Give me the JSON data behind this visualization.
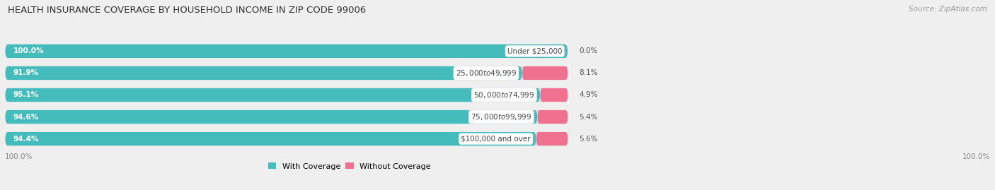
{
  "title": "HEALTH INSURANCE COVERAGE BY HOUSEHOLD INCOME IN ZIP CODE 99006",
  "source": "Source: ZipAtlas.com",
  "categories": [
    "Under $25,000",
    "$25,000 to $49,999",
    "$50,000 to $74,999",
    "$75,000 to $99,999",
    "$100,000 and over"
  ],
  "with_coverage": [
    100.0,
    91.9,
    95.1,
    94.6,
    94.4
  ],
  "without_coverage": [
    0.0,
    8.1,
    4.9,
    5.4,
    5.6
  ],
  "color_with": "#45BCBC",
  "color_without": "#F07090",
  "bg_color": "#EFEFEF",
  "bar_bg_color": "#DCDCDC",
  "title_fontsize": 9.5,
  "source_fontsize": 7.5,
  "bar_label_fontsize": 7.5,
  "category_fontsize": 7.5,
  "legend_fontsize": 8,
  "axis_label_fontsize": 7.5,
  "bar_height": 0.62,
  "xlim_max": 175
}
